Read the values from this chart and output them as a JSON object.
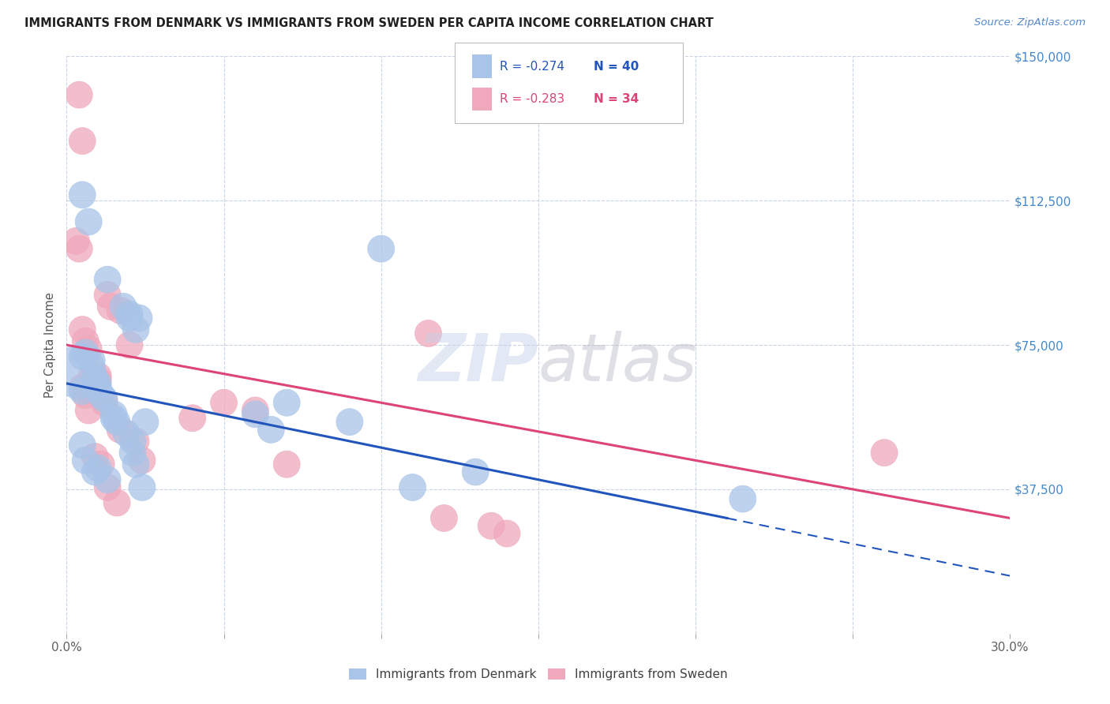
{
  "title": "IMMIGRANTS FROM DENMARK VS IMMIGRANTS FROM SWEDEN PER CAPITA INCOME CORRELATION CHART",
  "source": "Source: ZipAtlas.com",
  "ylabel": "Per Capita Income",
  "x_min": 0.0,
  "x_max": 0.3,
  "y_min": 0,
  "y_max": 150000,
  "y_ticks": [
    0,
    37500,
    75000,
    112500,
    150000
  ],
  "y_tick_labels": [
    "",
    "$37,500",
    "$75,000",
    "$112,500",
    "$150,000"
  ],
  "x_ticks": [
    0.0,
    0.05,
    0.1,
    0.15,
    0.2,
    0.25,
    0.3
  ],
  "x_tick_labels": [
    "0.0%",
    "",
    "",
    "",
    "",
    "",
    "30.0%"
  ],
  "legend_r_blue": "R = -0.274",
  "legend_n_blue": "N = 40",
  "legend_r_pink": "R = -0.283",
  "legend_n_pink": "N = 34",
  "legend_label_blue": "Immigrants from Denmark",
  "legend_label_pink": "Immigrants from Sweden",
  "blue_color": "#a8c4e8",
  "pink_color": "#f0a8bc",
  "line_blue": "#2255bb",
  "line_pink": "#dd4477",
  "title_color": "#202020",
  "source_color": "#5588cc",
  "right_tick_color": "#4488cc",
  "background_color": "#ffffff",
  "grid_color": "#c8d4e4",
  "denmark_x": [
    0.004,
    0.005,
    0.005,
    0.005,
    0.005,
    0.006,
    0.006,
    0.007,
    0.008,
    0.009,
    0.009,
    0.01,
    0.01,
    0.01,
    0.011,
    0.012,
    0.013,
    0.013,
    0.015,
    0.015,
    0.016,
    0.018,
    0.019,
    0.02,
    0.02,
    0.021,
    0.021,
    0.022,
    0.022,
    0.023,
    0.024,
    0.025,
    0.06,
    0.065,
    0.07,
    0.09,
    0.1,
    0.11,
    0.13,
    0.215
  ],
  "denmark_y": [
    68000,
    49000,
    72000,
    63000,
    114000,
    45000,
    73000,
    107000,
    71000,
    42000,
    66000,
    43000,
    64000,
    65000,
    62000,
    61000,
    40000,
    92000,
    57000,
    56000,
    55000,
    85000,
    52000,
    83000,
    82000,
    50000,
    47000,
    44000,
    79000,
    82000,
    38000,
    55000,
    57000,
    53000,
    60000,
    55000,
    100000,
    38000,
    42000,
    35000
  ],
  "denmark_size": [
    200,
    50,
    50,
    50,
    50,
    50,
    50,
    50,
    50,
    50,
    50,
    50,
    50,
    50,
    50,
    50,
    50,
    50,
    50,
    50,
    50,
    50,
    50,
    50,
    50,
    50,
    50,
    50,
    50,
    50,
    50,
    50,
    50,
    50,
    50,
    50,
    50,
    50,
    50,
    50
  ],
  "sweden_x": [
    0.003,
    0.004,
    0.004,
    0.005,
    0.005,
    0.006,
    0.006,
    0.007,
    0.007,
    0.008,
    0.009,
    0.01,
    0.01,
    0.011,
    0.012,
    0.013,
    0.013,
    0.014,
    0.016,
    0.017,
    0.017,
    0.02,
    0.022,
    0.024,
    0.04,
    0.05,
    0.06,
    0.07,
    0.115,
    0.12,
    0.135,
    0.14,
    0.26,
    0.005
  ],
  "sweden_y": [
    102000,
    140000,
    100000,
    64000,
    79000,
    62000,
    76000,
    58000,
    74000,
    67000,
    46000,
    66000,
    67000,
    44000,
    60000,
    38000,
    88000,
    85000,
    34000,
    84000,
    53000,
    75000,
    50000,
    45000,
    56000,
    60000,
    58000,
    44000,
    78000,
    30000,
    28000,
    26000,
    47000,
    128000
  ],
  "sweden_size": [
    50,
    50,
    50,
    50,
    50,
    50,
    50,
    50,
    50,
    50,
    50,
    50,
    50,
    50,
    50,
    50,
    50,
    50,
    50,
    50,
    50,
    50,
    50,
    50,
    50,
    50,
    50,
    50,
    50,
    50,
    50,
    50,
    50,
    50
  ],
  "dk_line_x0": 0.0,
  "dk_line_y0": 65000,
  "dk_line_x1": 0.21,
  "dk_line_y1": 30000,
  "sw_line_x0": 0.0,
  "sw_line_y0": 75000,
  "sw_line_x1": 0.3,
  "sw_line_y1": 30000
}
